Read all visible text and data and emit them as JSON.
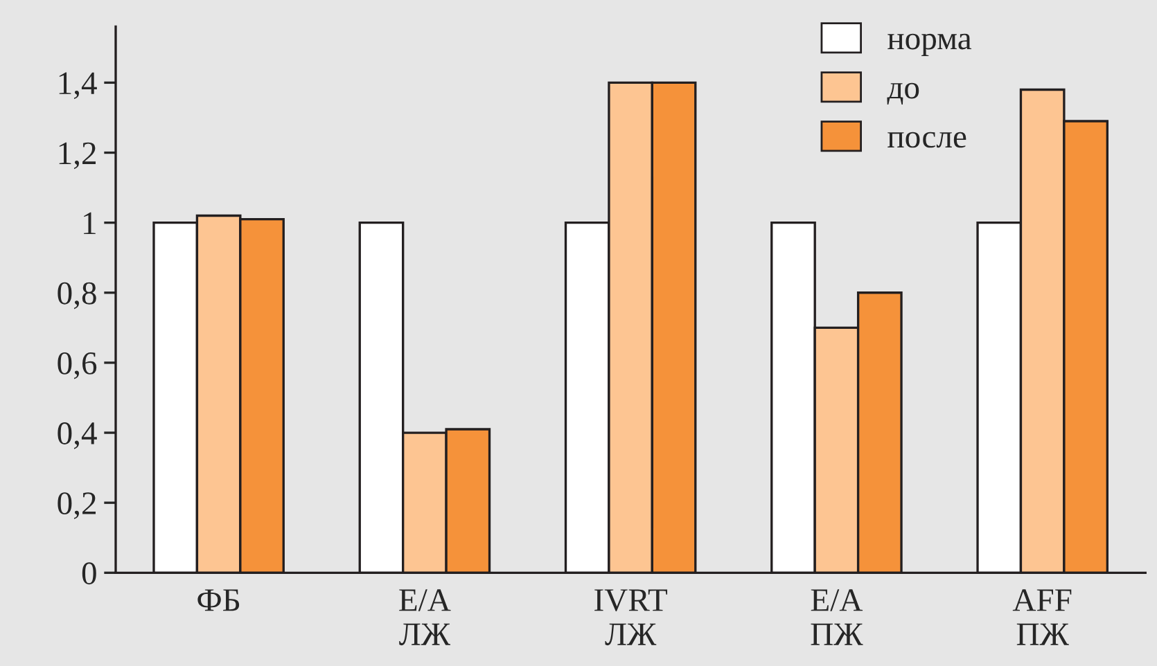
{
  "chart_data": {
    "type": "bar",
    "categories": [
      "ФБ",
      "E/A\nЛЖ",
      "IVRT\nЛЖ",
      "E/A\nПЖ",
      "AFF\nПЖ"
    ],
    "series": [
      {
        "name": "норма",
        "color": "#ffffff",
        "values": [
          1.0,
          1.0,
          1.0,
          1.0,
          1.0
        ]
      },
      {
        "name": "до",
        "color": "#fdc592",
        "values": [
          1.02,
          0.4,
          1.4,
          0.7,
          1.38
        ]
      },
      {
        "name": "после",
        "color": "#f5923a",
        "values": [
          1.01,
          0.41,
          1.4,
          0.8,
          1.29
        ]
      }
    ],
    "ylim": [
      0,
      1.56
    ],
    "yticks": [
      0,
      {
        "value": 0.2,
        "label": "0,2"
      },
      {
        "value": 0.4,
        "label": "0,4"
      },
      {
        "value": 0.6,
        "label": "0,6"
      },
      {
        "value": 0.8,
        "label": "0,8"
      },
      1,
      {
        "value": 1.2,
        "label": "1,2"
      },
      {
        "value": 1.4,
        "label": "1,4"
      }
    ],
    "grid": false,
    "legend": "top right"
  }
}
